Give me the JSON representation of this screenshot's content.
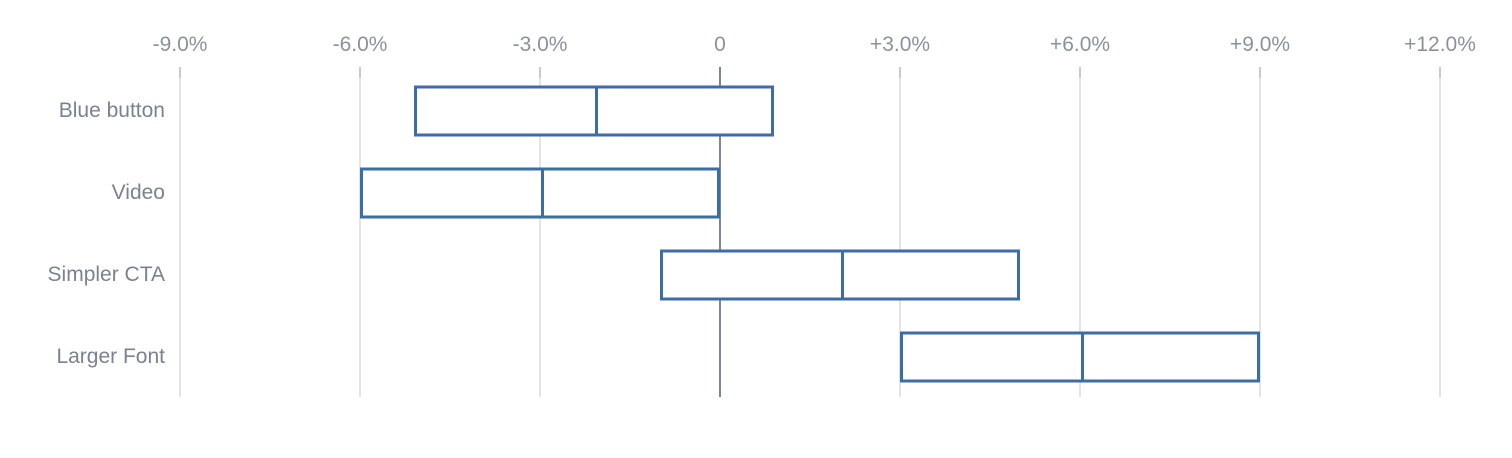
{
  "chart_data": {
    "type": "bar",
    "subtype": "range-interval",
    "title": "",
    "xlabel": "",
    "ylabel": "",
    "categories": [
      "Blue button",
      "Video",
      "Simpler CTA",
      "Larger Font"
    ],
    "series": [
      {
        "name": "Blue button",
        "low": -5.1,
        "mid": -2.1,
        "high": 0.9
      },
      {
        "name": "Video",
        "low": -6.0,
        "mid": -3.0,
        "high": 0.0
      },
      {
        "name": "Simpler CTA",
        "low": -1.0,
        "mid": 2.0,
        "high": 5.0
      },
      {
        "name": "Larger Font",
        "low": 3.0,
        "mid": 6.0,
        "high": 9.0
      }
    ],
    "x_ticks": [
      {
        "value": -9,
        "label": "-9.0%"
      },
      {
        "value": -6,
        "label": "-6.0%"
      },
      {
        "value": -3,
        "label": "-3.0%"
      },
      {
        "value": 0,
        "label": "0"
      },
      {
        "value": 3,
        "label": "+3.0%"
      },
      {
        "value": 6,
        "label": "+6.0%"
      },
      {
        "value": 9,
        "label": "+9.0%"
      },
      {
        "value": 12,
        "label": "+12.0%"
      }
    ],
    "xlim": [
      -12,
      13.2
    ],
    "grid": true,
    "legend": "none",
    "units": "percent"
  },
  "colors": {
    "bar_border": "#3d6da6",
    "gridline": "#e3e4e8",
    "tick": "#c7cad1",
    "zero_line": "#7e8694",
    "axis_label": "#8b919d",
    "category_label": "#7a8290",
    "background": "#ffffff"
  }
}
